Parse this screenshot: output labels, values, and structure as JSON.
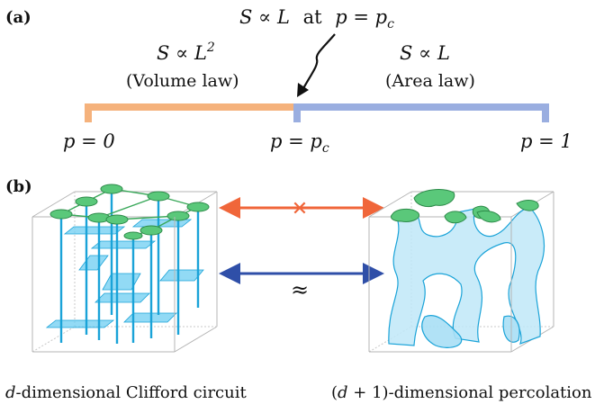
{
  "panel_a": {
    "label": "(a)",
    "phases": {
      "left": {
        "formula": "S ∝ L",
        "superscript": "2",
        "law": "(Volume law)",
        "color": "#f5b27c"
      },
      "right": {
        "formula": "S ∝ L",
        "law": "(Area law)",
        "color": "#9aaee0"
      }
    },
    "critical_note": {
      "s": "S ∝ L",
      "at": "at",
      "p": "p = p",
      "sub": "c"
    },
    "ticks": [
      {
        "main": "p = 0",
        "sub": ""
      },
      {
        "main": "p = p",
        "sub": "c"
      },
      {
        "main": "p = 1",
        "sub": ""
      }
    ]
  },
  "panel_b": {
    "label": "(b)",
    "left_caption_var": "d",
    "left_caption_rest": "-dimensional Clifford circuit",
    "right_caption_open": "(",
    "right_caption_var": "d",
    "right_caption_rest": " + 1)-dimensional percolation",
    "approx_symbol": "≈",
    "cross_symbol": "✕",
    "colors": {
      "top_arrow": "#f0663a",
      "bottom_arrow": "#2f4fa8",
      "cross": "#f0663a",
      "stabilizer_line": "#1aa3d8",
      "sheet": "#6dcdf2",
      "node": "#5ac87a",
      "cluster": "#bfe8f8"
    }
  }
}
